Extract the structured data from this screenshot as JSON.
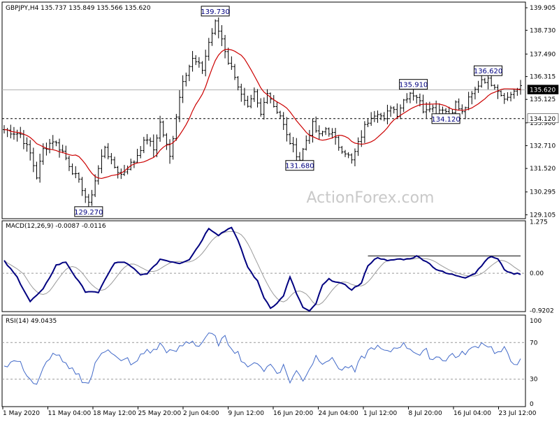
{
  "watermark": "ActionForex.com",
  "chart_data": {
    "type": "line",
    "symbol_header": "GBPJPY,H4  135.737 135.849 135.566 135.620",
    "x_tick_labels": [
      "1 May 2020",
      "11 May 04:00",
      "18 May 12:00",
      "25 May 20:00",
      "2 Jun 04:00",
      "9 Jun 12:00",
      "16 Jun 20:00",
      "24 Jun 04:00",
      "1 Jul 12:00",
      "8 Jul 20:00",
      "16 Jul 04:00",
      "23 Jul 12:00"
    ],
    "price_panel": {
      "ylim": [
        128.9,
        140.2
      ],
      "y_tick_labels": [
        "139.905",
        "138.730",
        "137.490",
        "136.315",
        "135.125",
        "133.900",
        "132.710",
        "131.520",
        "130.295",
        "129.105"
      ],
      "y_ticks": [
        139.905,
        138.73,
        137.49,
        136.315,
        135.125,
        133.9,
        132.71,
        131.52,
        130.295,
        129.105
      ],
      "current_price": {
        "value": 135.62,
        "label": "135.620",
        "color": "#000000"
      },
      "support_line": {
        "value": 134.12,
        "label": "134.120"
      },
      "annotations": [
        {
          "label": "139.730",
          "value": 139.73,
          "index": 65
        },
        {
          "label": "129.270",
          "value": 129.27,
          "index": 26
        },
        {
          "label": "131.680",
          "value": 131.68,
          "index": 91
        },
        {
          "label": "135.910",
          "value": 135.91,
          "index": 126
        },
        {
          "label": "134.120",
          "value": 134.12,
          "index": 136
        },
        {
          "label": "136.620",
          "value": 136.62,
          "index": 149
        }
      ],
      "ohlc_color": "#000000",
      "ma_color": "#cc0000",
      "anchors": [
        [
          0,
          133.55
        ],
        [
          5,
          133.3
        ],
        [
          8,
          132.3
        ],
        [
          10,
          131.1
        ],
        [
          12,
          132.5
        ],
        [
          15,
          133.0
        ],
        [
          18,
          132.4
        ],
        [
          21,
          131.4
        ],
        [
          24,
          130.5
        ],
        [
          26,
          129.6
        ],
        [
          28,
          130.9
        ],
        [
          31,
          132.7
        ],
        [
          33,
          131.8
        ],
        [
          36,
          131.2
        ],
        [
          38,
          131.6
        ],
        [
          40,
          131.9
        ],
        [
          42,
          132.6
        ],
        [
          44,
          133.1
        ],
        [
          46,
          132.5
        ],
        [
          48,
          133.9
        ],
        [
          51,
          132.1
        ],
        [
          53,
          134.3
        ],
        [
          55,
          136.2
        ],
        [
          58,
          137.2
        ],
        [
          61,
          136.7
        ],
        [
          63,
          138.1
        ],
        [
          65,
          139.1
        ],
        [
          67,
          138.3
        ],
        [
          69,
          137.1
        ],
        [
          71,
          136.4
        ],
        [
          73,
          135.3
        ],
        [
          75,
          134.6
        ],
        [
          77,
          135.4
        ],
        [
          79,
          134.3
        ],
        [
          81,
          135.6
        ],
        [
          83,
          134.8
        ],
        [
          85,
          134.3
        ],
        [
          87,
          133.2
        ],
        [
          89,
          132.6
        ],
        [
          91,
          132.0
        ],
        [
          93,
          133.0
        ],
        [
          95,
          133.8
        ],
        [
          97,
          133.2
        ],
        [
          99,
          133.6
        ],
        [
          101,
          133.3
        ],
        [
          103,
          132.7
        ],
        [
          105,
          132.4
        ],
        [
          107,
          131.9
        ],
        [
          109,
          132.8
        ],
        [
          111,
          133.7
        ],
        [
          113,
          134.3
        ],
        [
          115,
          134.5
        ],
        [
          117,
          134.0
        ],
        [
          119,
          134.8
        ],
        [
          121,
          134.4
        ],
        [
          123,
          135.1
        ],
        [
          125,
          135.5
        ],
        [
          127,
          135.3
        ],
        [
          129,
          134.6
        ],
        [
          131,
          134.8
        ],
        [
          133,
          134.5
        ],
        [
          135,
          134.7
        ],
        [
          137,
          134.3
        ],
        [
          139,
          134.9
        ],
        [
          141,
          134.4
        ],
        [
          143,
          135.1
        ],
        [
          145,
          135.6
        ],
        [
          147,
          136.2
        ],
        [
          149,
          136.1
        ],
        [
          151,
          135.9
        ],
        [
          153,
          135.4
        ],
        [
          155,
          135.2
        ],
        [
          157,
          135.6
        ],
        [
          159,
          135.7
        ]
      ]
    },
    "macd_panel": {
      "label": "MACD(12,26,9) -0.0087 -0.0116",
      "ylim": [
        -0.95,
        1.3
      ],
      "y_tick_labels": [
        "1.275",
        "0.00",
        "-0.9202"
      ],
      "y_ticks": [
        1.275,
        0.0,
        -0.9202
      ],
      "zero_label": "0.00",
      "resistance_value": 0.43,
      "macd_color": "#000080",
      "signal_color": "#9a9a9a",
      "anchors": [
        [
          0,
          0.3
        ],
        [
          4,
          -0.1
        ],
        [
          8,
          -0.7
        ],
        [
          12,
          -0.4
        ],
        [
          16,
          0.2
        ],
        [
          19,
          0.28
        ],
        [
          22,
          -0.1
        ],
        [
          25,
          -0.45
        ],
        [
          27,
          -0.45
        ],
        [
          29,
          -0.5
        ],
        [
          31,
          -0.15
        ],
        [
          34,
          0.25
        ],
        [
          37,
          0.28
        ],
        [
          40,
          0.1
        ],
        [
          42,
          -0.05
        ],
        [
          44,
          0.0
        ],
        [
          46,
          0.15
        ],
        [
          48,
          0.35
        ],
        [
          51,
          0.3
        ],
        [
          54,
          0.25
        ],
        [
          57,
          0.35
        ],
        [
          60,
          0.7
        ],
        [
          63,
          1.12
        ],
        [
          66,
          0.95
        ],
        [
          68,
          1.05
        ],
        [
          70,
          1.15
        ],
        [
          72,
          0.8
        ],
        [
          75,
          0.15
        ],
        [
          78,
          -0.2
        ],
        [
          80,
          -0.6
        ],
        [
          82,
          -0.85
        ],
        [
          84,
          -0.75
        ],
        [
          86,
          -0.55
        ],
        [
          88,
          -0.1
        ],
        [
          90,
          -0.5
        ],
        [
          92,
          -0.85
        ],
        [
          94,
          -0.95
        ],
        [
          96,
          -0.75
        ],
        [
          98,
          -0.3
        ],
        [
          100,
          -0.15
        ],
        [
          102,
          -0.2
        ],
        [
          105,
          -0.3
        ],
        [
          107,
          -0.4
        ],
        [
          110,
          -0.25
        ],
        [
          112,
          0.2
        ],
        [
          115,
          0.4
        ],
        [
          118,
          0.3
        ],
        [
          121,
          0.35
        ],
        [
          124,
          0.35
        ],
        [
          127,
          0.42
        ],
        [
          130,
          0.3
        ],
        [
          133,
          0.1
        ],
        [
          136,
          0.0
        ],
        [
          139,
          -0.05
        ],
        [
          142,
          -0.1
        ],
        [
          145,
          0.0
        ],
        [
          148,
          0.3
        ],
        [
          150,
          0.42
        ],
        [
          152,
          0.35
        ],
        [
          154,
          0.1
        ],
        [
          156,
          0.0
        ],
        [
          158,
          -0.01
        ]
      ]
    },
    "rsi_panel": {
      "label": "RSI(14) 49.0435",
      "ylim": [
        0,
        100
      ],
      "y_tick_labels": [
        "100",
        "70",
        "30",
        "0"
      ],
      "y_ticks": [
        100,
        70,
        30,
        0
      ],
      "levels": [
        70,
        30
      ],
      "rsi_color": "#4169c8",
      "anchors": [
        [
          0,
          45
        ],
        [
          2,
          48
        ],
        [
          4,
          50
        ],
        [
          6,
          42
        ],
        [
          8,
          30
        ],
        [
          10,
          22
        ],
        [
          12,
          40
        ],
        [
          14,
          55
        ],
        [
          16,
          58
        ],
        [
          18,
          48
        ],
        [
          20,
          40
        ],
        [
          22,
          38
        ],
        [
          24,
          30
        ],
        [
          26,
          25
        ],
        [
          28,
          45
        ],
        [
          30,
          60
        ],
        [
          32,
          65
        ],
        [
          34,
          55
        ],
        [
          36,
          48
        ],
        [
          38,
          52
        ],
        [
          40,
          45
        ],
        [
          42,
          55
        ],
        [
          44,
          62
        ],
        [
          46,
          60
        ],
        [
          48,
          68
        ],
        [
          50,
          62
        ],
        [
          52,
          58
        ],
        [
          54,
          64
        ],
        [
          56,
          70
        ],
        [
          58,
          72
        ],
        [
          60,
          66
        ],
        [
          62,
          76
        ],
        [
          64,
          78
        ],
        [
          66,
          70
        ],
        [
          68,
          74
        ],
        [
          70,
          66
        ],
        [
          72,
          58
        ],
        [
          74,
          48
        ],
        [
          76,
          42
        ],
        [
          78,
          50
        ],
        [
          80,
          40
        ],
        [
          82,
          46
        ],
        [
          84,
          38
        ],
        [
          86,
          44
        ],
        [
          88,
          28
        ],
        [
          90,
          38
        ],
        [
          92,
          30
        ],
        [
          94,
          42
        ],
        [
          96,
          55
        ],
        [
          98,
          50
        ],
        [
          100,
          52
        ],
        [
          102,
          48
        ],
        [
          104,
          40
        ],
        [
          106,
          44
        ],
        [
          108,
          38
        ],
        [
          110,
          52
        ],
        [
          112,
          60
        ],
        [
          114,
          66
        ],
        [
          116,
          62
        ],
        [
          118,
          58
        ],
        [
          120,
          64
        ],
        [
          122,
          68
        ],
        [
          124,
          66
        ],
        [
          126,
          62
        ],
        [
          128,
          56
        ],
        [
          130,
          60
        ],
        [
          132,
          52
        ],
        [
          134,
          56
        ],
        [
          136,
          50
        ],
        [
          138,
          58
        ],
        [
          140,
          54
        ],
        [
          142,
          60
        ],
        [
          144,
          62
        ],
        [
          146,
          68
        ],
        [
          148,
          70
        ],
        [
          150,
          64
        ],
        [
          152,
          58
        ],
        [
          154,
          62
        ],
        [
          156,
          50
        ],
        [
          158,
          49
        ]
      ]
    }
  }
}
